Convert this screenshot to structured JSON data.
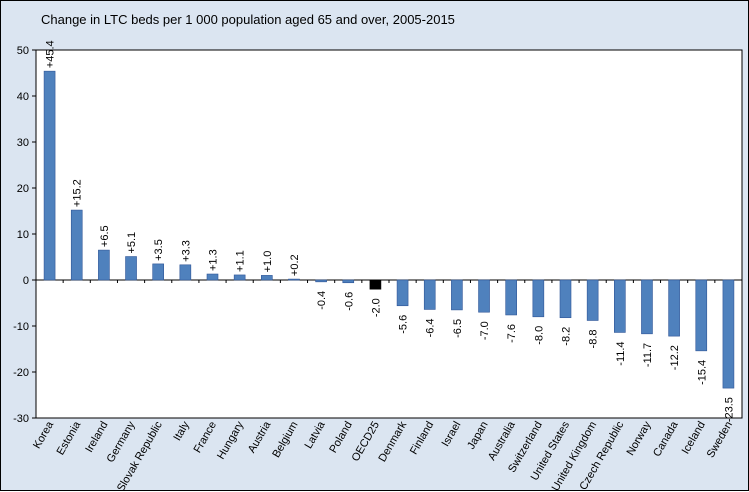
{
  "chart_data": {
    "type": "bar",
    "title": "Change in LTC beds per 1 000 population aged 65 and over, 2005-2015",
    "xlabel": "",
    "ylabel": "",
    "ylim": [
      -30,
      50
    ],
    "yticks": [
      50,
      40,
      30,
      20,
      10,
      0,
      -10,
      -20,
      -30
    ],
    "grid": false,
    "categories": [
      "Korea",
      "Estonia",
      "Ireland",
      "Germany",
      "Slovak Republic",
      "Italy",
      "France",
      "Hungary",
      "Austria",
      "Belgium",
      "Latvia",
      "Poland",
      "OECD25",
      "Denmark",
      "Finland",
      "Israel",
      "Japan",
      "Australia",
      "Switzerland",
      "United States",
      "United Kingdom",
      "Czech Republic",
      "Norway",
      "Canada",
      "Iceland",
      "Sweden"
    ],
    "values": [
      45.4,
      15.2,
      6.5,
      5.1,
      3.5,
      3.3,
      1.3,
      1.1,
      1.0,
      0.2,
      -0.4,
      -0.6,
      -2.0,
      -5.6,
      -6.4,
      -6.5,
      -7.0,
      -7.6,
      -8.0,
      -8.2,
      -8.8,
      -11.4,
      -11.7,
      -12.2,
      -15.4,
      -23.5
    ],
    "value_labels": [
      "+45.4",
      "+15.2",
      "+6.5",
      "+5.1",
      "+3.5",
      "+3.3",
      "+1.3",
      "+1.1",
      "+1.0",
      "+0.2",
      "-0.4",
      "-0.6",
      "-2.0",
      "-5.6",
      "-6.4",
      "-6.5",
      "-7.0",
      "-7.6",
      "-8.0",
      "-8.2",
      "-8.8",
      "-11.4",
      "-11.7",
      "-12.2",
      "-15.4",
      "-23.5"
    ],
    "highlight_category": "OECD25",
    "colors": {
      "bar": "#4f81bd",
      "highlight": "#000000",
      "background": "#dbe5f1",
      "plot_background": "#ffffff"
    }
  }
}
